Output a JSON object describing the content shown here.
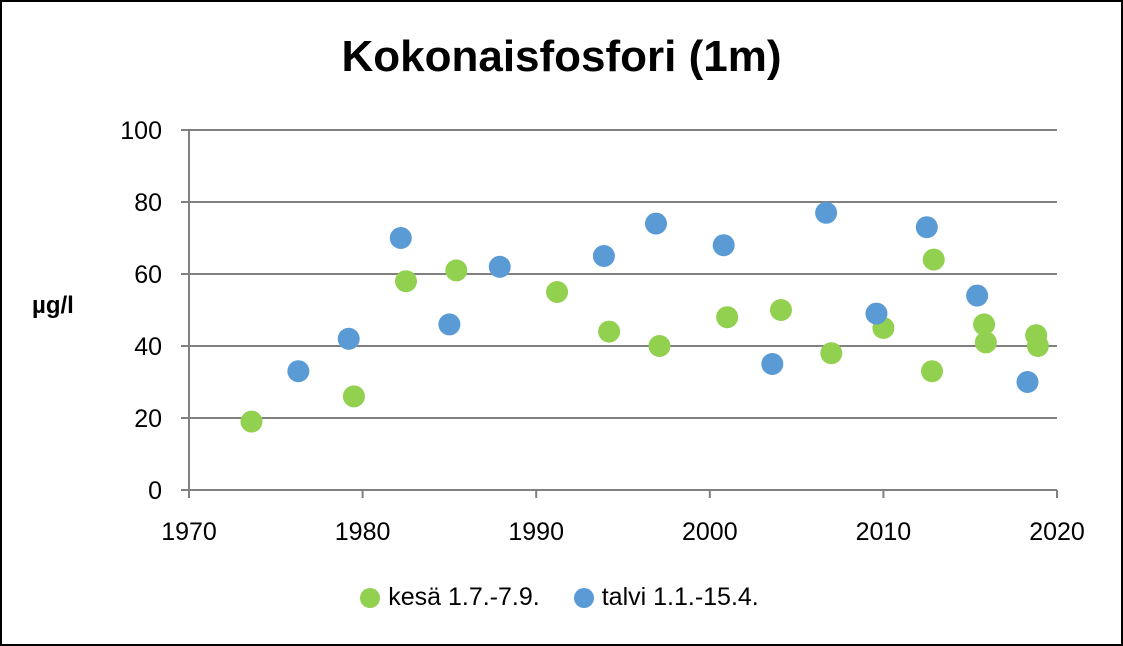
{
  "colors": {
    "kesa": "#92d050",
    "talvi": "#5b9bd5",
    "grid": "#808080",
    "axis": "#808080"
  },
  "chart_data": {
    "type": "scatter",
    "title": "Kokonaisfosfori (1m)",
    "xlabel": "",
    "ylabel": "µg/l",
    "xlim": [
      1970,
      2020
    ],
    "ylim": [
      0,
      100
    ],
    "x_ticks": [
      1970,
      1980,
      1990,
      2000,
      2010,
      2020
    ],
    "y_ticks": [
      0,
      20,
      40,
      60,
      80,
      100
    ],
    "grid": "horizontal",
    "legend_position": "bottom",
    "series": [
      {
        "name": "kesä 1.7.-7.9.",
        "color": "#92d050",
        "points": [
          [
            1973.6,
            19
          ],
          [
            1979.5,
            26
          ],
          [
            1982.5,
            58
          ],
          [
            1985.4,
            61
          ],
          [
            1991.2,
            55
          ],
          [
            1994.2,
            44
          ],
          [
            1997.1,
            40
          ],
          [
            2001.0,
            48
          ],
          [
            2004.1,
            50
          ],
          [
            2007.0,
            38
          ],
          [
            2010.0,
            45
          ],
          [
            2012.8,
            33
          ],
          [
            2012.9,
            64
          ],
          [
            2015.8,
            46
          ],
          [
            2015.9,
            41
          ],
          [
            2018.8,
            43
          ],
          [
            2018.9,
            40
          ]
        ]
      },
      {
        "name": "talvi 1.1.-15.4.",
        "color": "#5b9bd5",
        "points": [
          [
            1976.3,
            33
          ],
          [
            1979.2,
            42
          ],
          [
            1982.2,
            70
          ],
          [
            1985.0,
            46
          ],
          [
            1987.9,
            62
          ],
          [
            1993.9,
            65
          ],
          [
            1996.9,
            74
          ],
          [
            2000.8,
            68
          ],
          [
            2003.6,
            35
          ],
          [
            2006.7,
            77
          ],
          [
            2009.6,
            49
          ],
          [
            2012.5,
            73
          ],
          [
            2015.4,
            54
          ],
          [
            2018.3,
            30
          ]
        ]
      }
    ]
  }
}
